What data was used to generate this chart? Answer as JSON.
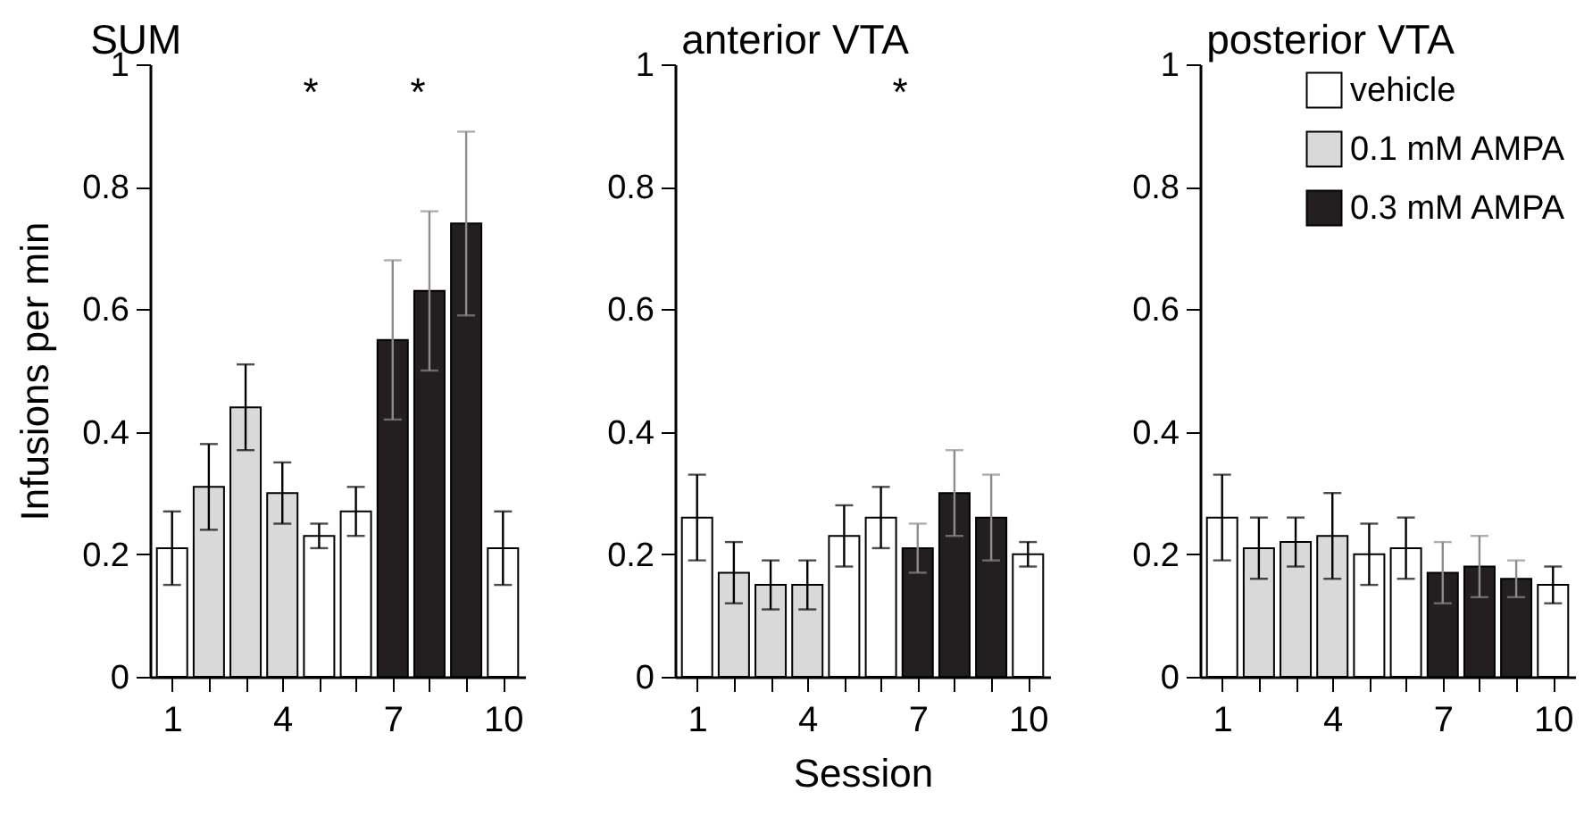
{
  "chart_data": [
    {
      "type": "bar",
      "title": "SUM",
      "ylabel": "Infusions per min",
      "x": [
        1,
        2,
        3,
        4,
        5,
        6,
        7,
        8,
        9,
        10
      ],
      "xlim": [
        0.4,
        10.6
      ],
      "xticks": [
        1,
        {
          "value": 2,
          "label": null
        },
        {
          "value": 3,
          "label": null
        },
        4,
        {
          "value": 5,
          "label": null
        },
        {
          "value": 6,
          "label": null
        },
        7,
        {
          "value": 8,
          "label": null
        },
        {
          "value": 9,
          "label": null
        },
        10
      ],
      "ylim": [
        0,
        1
      ],
      "yticks": [
        0,
        0.2,
        0.4,
        0.6,
        0.8,
        1
      ],
      "series": [
        {
          "color": "#ffffff",
          "values": [
            0.21,
            null,
            null,
            null,
            0.23,
            0.27,
            null,
            null,
            null,
            0.21
          ],
          "errors": [
            0.06,
            null,
            null,
            null,
            0.02,
            0.04,
            null,
            null,
            null,
            0.06
          ]
        },
        {
          "color": "#d9d9d9",
          "values": [
            null,
            0.31,
            0.44,
            0.3,
            null,
            null,
            null,
            null,
            null,
            null
          ],
          "errors": [
            null,
            0.07,
            0.07,
            0.05,
            null,
            null,
            null,
            null,
            null,
            null
          ]
        },
        {
          "color": "#231f20",
          "values": [
            null,
            null,
            null,
            null,
            null,
            null,
            0.55,
            0.63,
            0.74,
            null
          ],
          "errors": [
            null,
            null,
            null,
            null,
            null,
            null,
            0.13,
            0.13,
            0.15,
            null
          ]
        }
      ],
      "annotations": [
        "*",
        "*"
      ]
    },
    {
      "type": "bar",
      "title": "anterior VTA",
      "xlabel": "Session",
      "x": [
        1,
        2,
        3,
        4,
        5,
        6,
        7,
        8,
        9,
        10
      ],
      "xlim": [
        0.4,
        10.6
      ],
      "xticks": [
        1,
        {
          "value": 2,
          "label": null
        },
        {
          "value": 3,
          "label": null
        },
        4,
        {
          "value": 5,
          "label": null
        },
        {
          "value": 6,
          "label": null
        },
        7,
        {
          "value": 8,
          "label": null
        },
        {
          "value": 9,
          "label": null
        },
        10
      ],
      "ylim": [
        0,
        1
      ],
      "yticks": [
        0,
        0.2,
        0.4,
        0.6,
        0.8,
        1
      ],
      "series": [
        {
          "color": "#ffffff",
          "values": [
            0.26,
            null,
            null,
            null,
            0.23,
            0.26,
            null,
            null,
            null,
            0.2
          ],
          "errors": [
            0.07,
            null,
            null,
            null,
            0.05,
            0.05,
            null,
            null,
            null,
            0.02
          ]
        },
        {
          "color": "#d9d9d9",
          "values": [
            null,
            0.17,
            0.15,
            0.15,
            null,
            null,
            null,
            null,
            null,
            null
          ],
          "errors": [
            null,
            0.05,
            0.04,
            0.04,
            null,
            null,
            null,
            null,
            null,
            null
          ]
        },
        {
          "color": "#231f20",
          "values": [
            null,
            null,
            null,
            null,
            null,
            null,
            0.21,
            0.3,
            0.26,
            null
          ],
          "errors": [
            null,
            null,
            null,
            null,
            null,
            null,
            0.04,
            0.07,
            0.07,
            null
          ]
        }
      ],
      "annotations": [
        "*"
      ]
    },
    {
      "type": "bar",
      "title": "posterior VTA",
      "legend": "top right",
      "x": [
        1,
        2,
        3,
        4,
        5,
        6,
        7,
        8,
        9,
        10
      ],
      "xlim": [
        0.4,
        10.6
      ],
      "xticks": [
        1,
        {
          "value": 2,
          "label": null
        },
        {
          "value": 3,
          "label": null
        },
        4,
        {
          "value": 5,
          "label": null
        },
        {
          "value": 6,
          "label": null
        },
        7,
        {
          "value": 8,
          "label": null
        },
        {
          "value": 9,
          "label": null
        },
        10
      ],
      "ylim": [
        0,
        1
      ],
      "yticks": [
        0,
        0.2,
        0.4,
        0.6,
        0.8,
        1
      ],
      "series": [
        {
          "name": "vehicle",
          "color": "#ffffff",
          "values": [
            0.26,
            null,
            null,
            null,
            0.2,
            0.21,
            null,
            null,
            null,
            0.15
          ],
          "errors": [
            0.07,
            null,
            null,
            null,
            0.05,
            0.05,
            null,
            null,
            null,
            0.03
          ]
        },
        {
          "name": "0.1 mM AMPA",
          "color": "#d9d9d9",
          "values": [
            null,
            0.21,
            0.22,
            0.23,
            null,
            null,
            null,
            null,
            null,
            null
          ],
          "errors": [
            null,
            0.05,
            0.04,
            0.07,
            null,
            null,
            null,
            null,
            null,
            null
          ]
        },
        {
          "name": "0.3 mM AMPA",
          "color": "#231f20",
          "values": [
            null,
            null,
            null,
            null,
            null,
            null,
            0.17,
            0.18,
            0.16,
            null
          ],
          "errors": [
            null,
            null,
            null,
            null,
            null,
            null,
            0.05,
            0.05,
            0.03,
            null
          ]
        }
      ]
    }
  ]
}
